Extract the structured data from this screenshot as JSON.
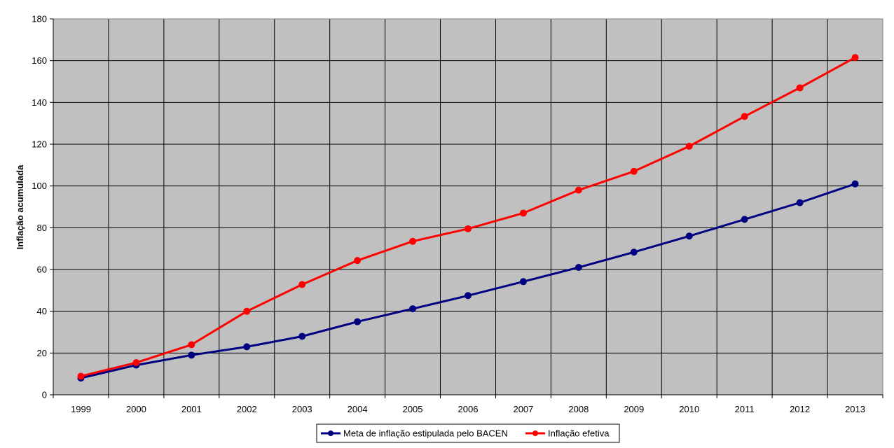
{
  "chart_data": {
    "type": "line",
    "title": "",
    "xlabel": "",
    "ylabel": "Inflação acumulada",
    "ylim": [
      0,
      180
    ],
    "yticks": [
      0,
      20,
      40,
      60,
      80,
      100,
      120,
      140,
      160,
      180
    ],
    "categories": [
      "1999",
      "2000",
      "2001",
      "2002",
      "2003",
      "2004",
      "2005",
      "2006",
      "2007",
      "2008",
      "2009",
      "2010",
      "2011",
      "2012",
      "2013"
    ],
    "grid": true,
    "plot_background": "#c0c0c0",
    "legend_position": "bottom",
    "series": [
      {
        "name": "Meta de inflação estipulada pelo BACEN",
        "color": "#000080",
        "values": [
          8,
          14.2,
          19,
          23,
          28,
          35,
          41.2,
          47.5,
          54.2,
          61,
          68.3,
          76,
          84,
          92,
          101
        ]
      },
      {
        "name": "Inflação efetiva",
        "color": "#ff0000",
        "values": [
          8.9,
          15.4,
          24,
          40,
          52.8,
          64.3,
          73.5,
          79.5,
          87,
          98,
          107,
          119,
          133.3,
          147,
          161.5
        ]
      }
    ]
  }
}
